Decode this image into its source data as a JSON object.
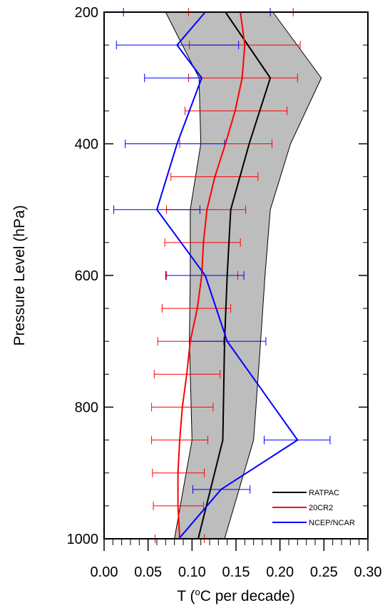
{
  "chart_data": {
    "type": "line",
    "orientation": "vertical-profile",
    "xlabel": "T (°C per decade)",
    "xlabel_parts": {
      "prefix": "T (",
      "superscript": "o",
      "suffix": "C per decade)"
    },
    "ylabel": "Pressure Level (hPa)",
    "xlim": [
      0.0,
      0.3
    ],
    "ylim": [
      1000,
      200
    ],
    "y_inverted": true,
    "grid": false,
    "legend_position": "bottom-right",
    "x_ticks": [
      "0.00",
      "0.05",
      "0.10",
      "0.15",
      "0.20",
      "0.25",
      "0.30"
    ],
    "y_ticks": [
      "200",
      "400",
      "600",
      "800",
      "1000"
    ],
    "y": [
      200,
      250,
      300,
      350,
      400,
      450,
      500,
      550,
      600,
      650,
      700,
      750,
      800,
      850,
      900,
      950,
      1000
    ],
    "series": [
      {
        "name": "RATPAC",
        "color": "#000000",
        "y": [
          200,
          300,
          400,
          500,
          600,
          700,
          850,
          1000
        ],
        "values": [
          0.138,
          0.189,
          0.165,
          0.144,
          0.14,
          0.137,
          0.135,
          0.107
        ],
        "envelope": {
          "fill": "#bdbdbd",
          "lower": [
            0.07,
            0.108,
            0.11,
            0.098,
            0.098,
            0.097,
            0.1,
            0.08
          ],
          "upper": [
            0.192,
            0.247,
            0.212,
            0.189,
            0.183,
            0.178,
            0.17,
            0.137
          ]
        }
      },
      {
        "name": "20CR2",
        "color": "#ff0000",
        "y": [
          200,
          250,
          300,
          350,
          400,
          450,
          500,
          550,
          600,
          650,
          700,
          750,
          800,
          850,
          900,
          950,
          1000
        ],
        "values": [
          0.155,
          0.16,
          0.157,
          0.149,
          0.138,
          0.126,
          0.117,
          0.113,
          0.111,
          0.106,
          0.098,
          0.094,
          0.089,
          0.086,
          0.084,
          0.084,
          0.086
        ],
        "error_bars": {
          "lower": [
            0.096,
            0.097,
            0.096,
            0.092,
            0.086,
            0.076,
            0.071,
            0.069,
            0.071,
            0.066,
            0.061,
            0.057,
            0.054,
            0.054,
            0.055,
            0.056,
            0.058
          ],
          "upper": [
            0.215,
            0.223,
            0.22,
            0.208,
            0.191,
            0.175,
            0.161,
            0.155,
            0.152,
            0.144,
            0.136,
            0.132,
            0.124,
            0.118,
            0.114,
            0.113,
            0.114
          ]
        }
      },
      {
        "name": "NCEP/NCAR",
        "color": "#0000ff",
        "y": [
          200,
          250,
          300,
          400,
          500,
          600,
          700,
          850,
          925,
          1000
        ],
        "values": [
          0.115,
          0.083,
          0.111,
          0.083,
          0.06,
          0.115,
          0.14,
          0.22,
          0.133,
          0.085
        ],
        "error_bars": {
          "lower": [
            0.022,
            0.014,
            0.046,
            0.024,
            0.011,
            0.07,
            0.097,
            0.182,
            0.101,
            null
          ],
          "upper": [
            0.189,
            0.153,
            null,
            0.137,
            0.109,
            0.159,
            0.184,
            0.257,
            0.166,
            null
          ]
        }
      }
    ]
  }
}
